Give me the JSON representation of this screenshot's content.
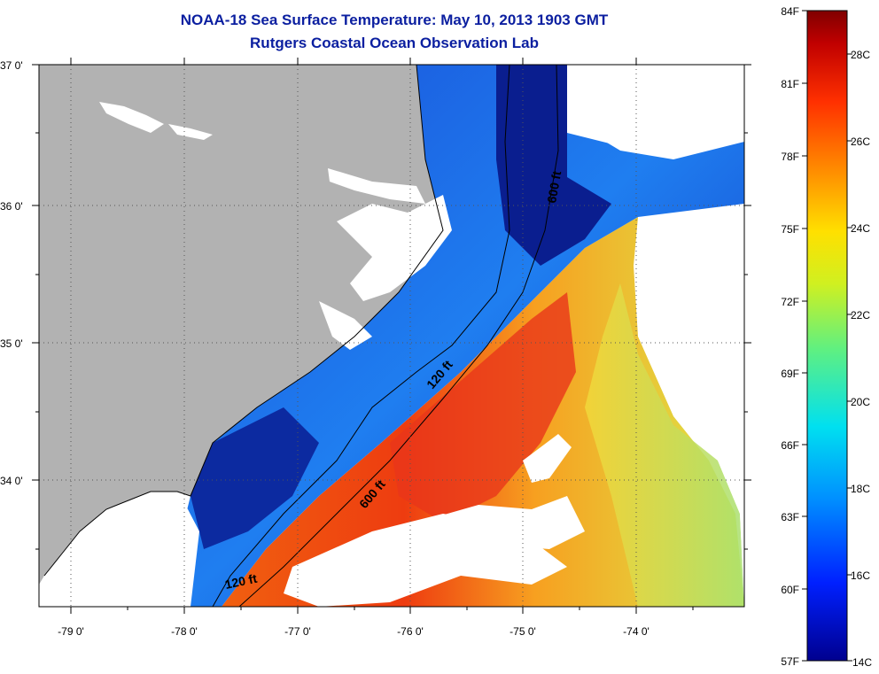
{
  "title": "NOAA-18 Sea Surface Temperature:  May 10, 2013 1903 GMT",
  "subtitle": "Rutgers Coastal Ocean Observation Lab",
  "lat_labels": [
    "37 0'",
    "36 0'",
    "35 0'",
    "34 0'"
  ],
  "lon_labels": [
    "-79 0'",
    "-78 0'",
    "-77 0'",
    "-76 0'",
    "-75 0'",
    "-74 0'"
  ],
  "contour_labels": [
    "600 ft",
    "120 ft",
    "600 ft",
    "120 ft"
  ],
  "colorbar": {
    "f_labels": [
      "84F",
      "81F",
      "78F",
      "75F",
      "72F",
      "69F",
      "66F",
      "63F",
      "60F",
      "57F"
    ],
    "c_labels": [
      "28C",
      "26C",
      "24C",
      "22C",
      "20C",
      "18C",
      "16C",
      "14C"
    ]
  },
  "colors": {
    "title": "#0b1fa0",
    "land": "#b2b2b2",
    "cold": "#0a1e8f",
    "warm": "#e8501a"
  }
}
